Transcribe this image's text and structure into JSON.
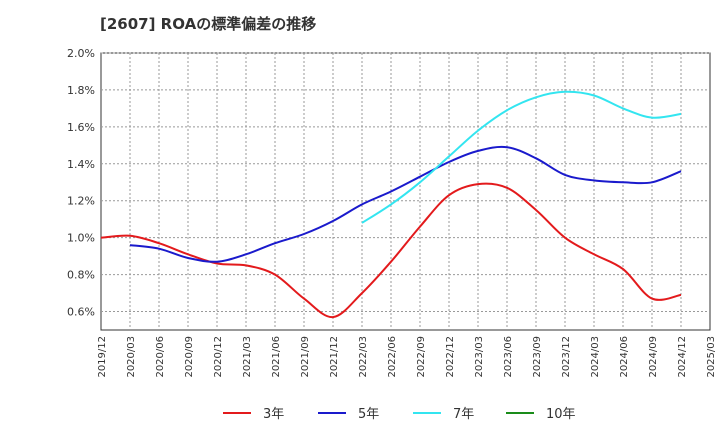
{
  "chart_data": {
    "type": "line",
    "title": "[2607]  ROAの標準偏差の推移",
    "xlabel": "",
    "ylabel": "",
    "ylim": [
      0.5,
      2.0
    ],
    "y_ticks": [
      "2.0%",
      "1.8%",
      "1.6%",
      "1.4%",
      "1.2%",
      "1.0%",
      "0.8%",
      "0.6%"
    ],
    "y_tick_values": [
      2.0,
      1.8,
      1.6,
      1.4,
      1.2,
      1.0,
      0.8,
      0.6
    ],
    "x_ticks": [
      "2019/12",
      "2020/03",
      "2020/06",
      "2020/09",
      "2020/12",
      "2021/03",
      "2021/06",
      "2021/09",
      "2021/12",
      "2022/03",
      "2022/06",
      "2022/09",
      "2022/12",
      "2023/03",
      "2023/06",
      "2023/09",
      "2023/12",
      "2024/03",
      "2024/06",
      "2024/09",
      "2024/12",
      "2025/03"
    ],
    "grid": true,
    "legend_position": "bottom",
    "series": [
      {
        "name": "3年",
        "color": "#e31a1c",
        "x": [
          "2019/12",
          "2020/03",
          "2020/06",
          "2020/09",
          "2020/12",
          "2021/03",
          "2021/06",
          "2021/09",
          "2021/12",
          "2022/03",
          "2022/06",
          "2022/09",
          "2022/12",
          "2023/03",
          "2023/06",
          "2023/09",
          "2023/12",
          "2024/03",
          "2024/06",
          "2024/09",
          "2024/12"
        ],
        "y": [
          1.0,
          1.01,
          0.97,
          0.91,
          0.86,
          0.85,
          0.8,
          0.67,
          0.57,
          0.7,
          0.87,
          1.06,
          1.23,
          1.29,
          1.27,
          1.15,
          1.0,
          0.91,
          0.83,
          0.67,
          0.69
        ]
      },
      {
        "name": "5年",
        "color": "#1a1acc",
        "x": [
          "2020/03",
          "2020/06",
          "2020/09",
          "2020/12",
          "2021/03",
          "2021/06",
          "2021/09",
          "2021/12",
          "2022/03",
          "2022/06",
          "2022/09",
          "2022/12",
          "2023/03",
          "2023/06",
          "2023/09",
          "2023/12",
          "2024/03",
          "2024/06",
          "2024/09",
          "2024/12"
        ],
        "y": [
          0.96,
          0.94,
          0.89,
          0.87,
          0.91,
          0.97,
          1.02,
          1.09,
          1.18,
          1.25,
          1.33,
          1.41,
          1.47,
          1.49,
          1.43,
          1.34,
          1.31,
          1.3,
          1.3,
          1.36
        ]
      },
      {
        "name": "7年",
        "color": "#33e5f0",
        "x": [
          "2022/03",
          "2022/06",
          "2022/09",
          "2022/12",
          "2023/03",
          "2023/06",
          "2023/09",
          "2023/12",
          "2024/03",
          "2024/06",
          "2024/09",
          "2024/12"
        ],
        "y": [
          1.08,
          1.18,
          1.3,
          1.44,
          1.58,
          1.69,
          1.76,
          1.79,
          1.77,
          1.7,
          1.65,
          1.67
        ]
      },
      {
        "name": "10年",
        "color": "#1a8c1a",
        "x": [],
        "y": []
      }
    ]
  }
}
